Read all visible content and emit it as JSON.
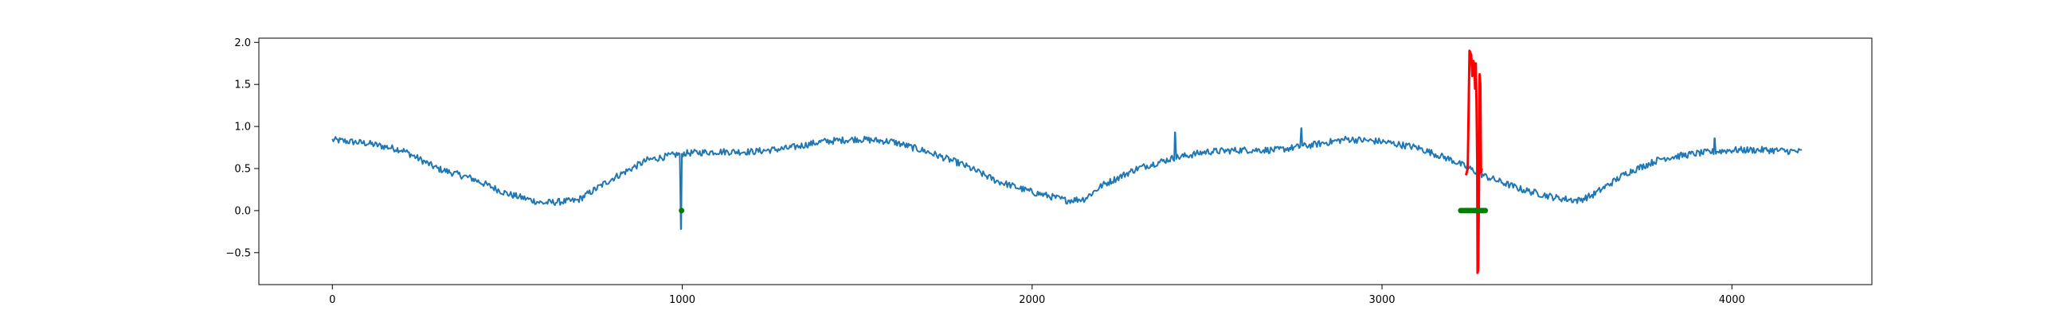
{
  "chart_data": {
    "type": "line",
    "title": "",
    "xlabel": "",
    "ylabel": "",
    "xlim": [
      -210,
      4400
    ],
    "ylim": [
      -0.88,
      2.05
    ],
    "xticks": [
      0,
      1000,
      2000,
      3000,
      4000
    ],
    "xtick_labels": [
      "0",
      "1000",
      "2000",
      "3000",
      "4000"
    ],
    "yticks": [
      -0.5,
      0.0,
      0.5,
      1.0,
      1.5,
      2.0
    ],
    "ytick_labels": [
      "−0.5",
      "0.0",
      "0.5",
      "1.0",
      "1.5",
      "2.0"
    ],
    "grid": false,
    "legend": "none",
    "series": [
      {
        "color": "#1f77b4",
        "line_width": 2,
        "noise": 0.04,
        "x_range": [
          0,
          4200
        ],
        "baseline_points": [
          [
            0,
            0.84
          ],
          [
            100,
            0.8
          ],
          [
            200,
            0.72
          ],
          [
            300,
            0.5
          ],
          [
            400,
            0.38
          ],
          [
            500,
            0.2
          ],
          [
            600,
            0.09
          ],
          [
            700,
            0.12
          ],
          [
            800,
            0.38
          ],
          [
            900,
            0.6
          ],
          [
            1000,
            0.68
          ],
          [
            1100,
            0.7
          ],
          [
            1200,
            0.7
          ],
          [
            1300,
            0.74
          ],
          [
            1400,
            0.82
          ],
          [
            1500,
            0.85
          ],
          [
            1600,
            0.82
          ],
          [
            1700,
            0.7
          ],
          [
            1800,
            0.55
          ],
          [
            1900,
            0.35
          ],
          [
            2000,
            0.22
          ],
          [
            2100,
            0.12
          ],
          [
            2150,
            0.14
          ],
          [
            2200,
            0.3
          ],
          [
            2300,
            0.5
          ],
          [
            2400,
            0.62
          ],
          [
            2500,
            0.7
          ],
          [
            2600,
            0.72
          ],
          [
            2700,
            0.72
          ],
          [
            2800,
            0.78
          ],
          [
            2900,
            0.85
          ],
          [
            3000,
            0.82
          ],
          [
            3100,
            0.75
          ],
          [
            3200,
            0.6
          ],
          [
            3300,
            0.4
          ],
          [
            3400,
            0.25
          ],
          [
            3500,
            0.15
          ],
          [
            3560,
            0.12
          ],
          [
            3600,
            0.18
          ],
          [
            3700,
            0.45
          ],
          [
            3800,
            0.62
          ],
          [
            3900,
            0.68
          ],
          [
            4000,
            0.72
          ],
          [
            4100,
            0.72
          ],
          [
            4200,
            0.7
          ]
        ],
        "spikes": [
          [
            997,
            -0.22
          ],
          [
            2408,
            0.93
          ],
          [
            2770,
            0.98
          ],
          [
            3950,
            0.86
          ]
        ]
      },
      {
        "color": "#ff0000",
        "line_width": 3,
        "points": [
          [
            3240,
            0.42
          ],
          [
            3245,
            0.5
          ],
          [
            3250,
            1.9
          ],
          [
            3255,
            1.85
          ],
          [
            3258,
            1.6
          ],
          [
            3261,
            1.78
          ],
          [
            3264,
            1.72
          ],
          [
            3266,
            1.45
          ],
          [
            3268,
            1.75
          ],
          [
            3270,
            1.3
          ],
          [
            3272,
            0.6
          ],
          [
            3273,
            -0.74
          ],
          [
            3275,
            -0.7
          ],
          [
            3277,
            0.2
          ],
          [
            3279,
            1.62
          ],
          [
            3281,
            1.5
          ],
          [
            3283,
            0.45
          ],
          [
            3285,
            0.5
          ]
        ]
      }
    ],
    "markers": [
      {
        "color": "#008000",
        "points": [
          [
            998,
            0.0
          ],
          [
            3225,
            0.0
          ],
          [
            3230,
            0.0
          ],
          [
            3235,
            0.0
          ],
          [
            3240,
            0.0
          ],
          [
            3245,
            0.0
          ],
          [
            3250,
            0.0
          ],
          [
            3255,
            0.0
          ],
          [
            3260,
            0.0
          ],
          [
            3265,
            0.0
          ],
          [
            3270,
            0.0
          ],
          [
            3275,
            0.0
          ],
          [
            3280,
            0.0
          ],
          [
            3285,
            0.0
          ],
          [
            3290,
            0.0
          ],
          [
            3295,
            0.0
          ]
        ]
      }
    ]
  }
}
